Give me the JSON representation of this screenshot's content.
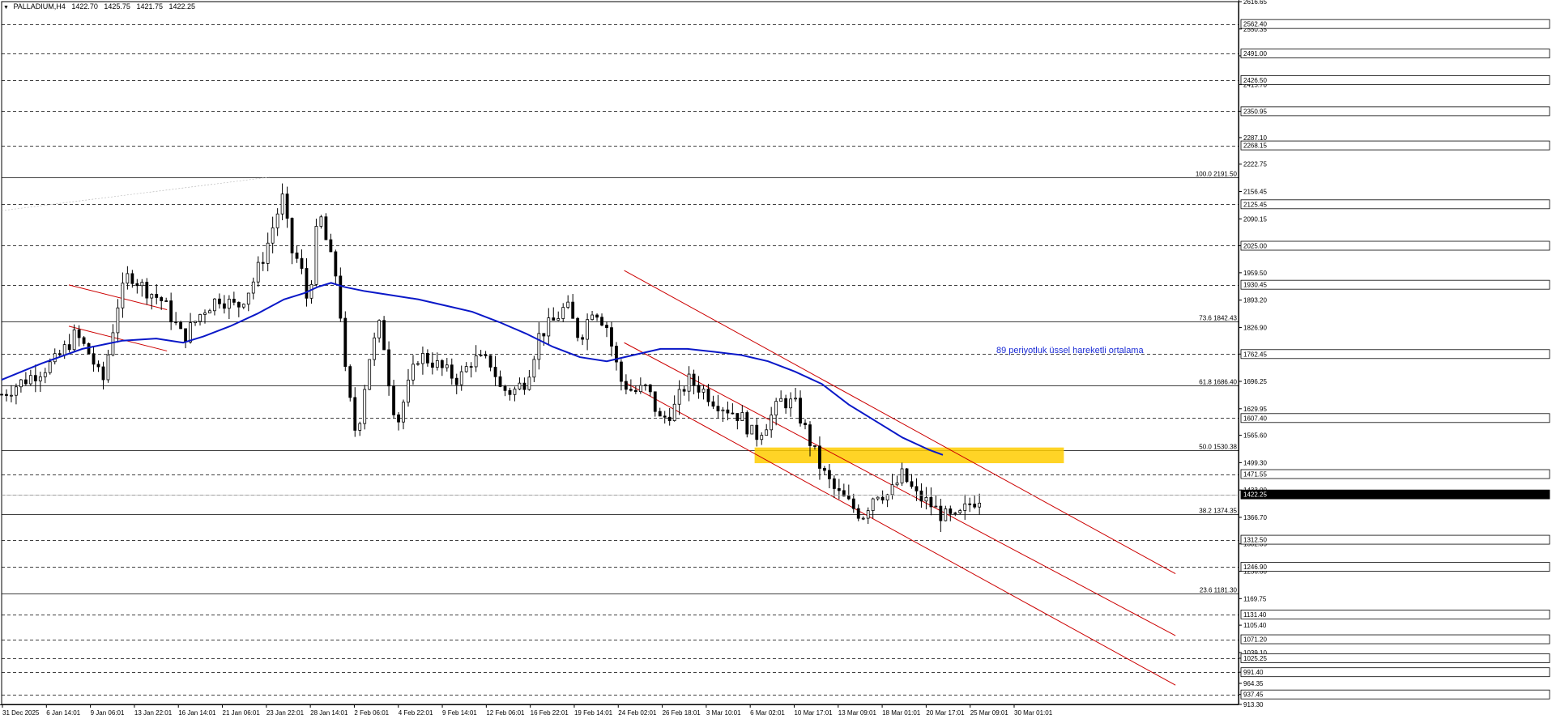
{
  "header": {
    "symbol": "PALLADIUM,H4",
    "open": "1422.70",
    "high": "1425.75",
    "low": "1421.75",
    "close": "1422.25"
  },
  "colors": {
    "background": "#ffffff",
    "candle": "#000000",
    "ema": "#0a18c8",
    "channel": "#cc0000",
    "zone": "#ffcc00",
    "annotation": "#1a2bd6",
    "grid": "#000000"
  },
  "annotation": "89 periyotluk üssel hareketli ortalama",
  "chart_data": {
    "type": "candlestick",
    "timeframe": "H4",
    "ylim": [
      913.3,
      2616.65
    ],
    "y_ticks": [
      "2616.65",
      "2550.35",
      "2485.30",
      "2415.70",
      "2350.95",
      "2287.10",
      "2222.75",
      "2156.45",
      "2090.15",
      "2025.00",
      "1959.50",
      "1893.20",
      "1826.90",
      "1762.45",
      "1696.25",
      "1629.95",
      "1565.60",
      "1499.30",
      "1433.00",
      "1366.70",
      "1302.35",
      "1236.00",
      "1169.75",
      "1105.40",
      "1039.10",
      "1025.25",
      "991.40",
      "964.35",
      "937.45",
      "913.30"
    ],
    "x_labels": [
      "31 Dec 2025",
      "6 Jan 14:01",
      "9 Jan 06:01",
      "13 Jan 22:01",
      "16 Jan 14:01",
      "21 Jan 06:01",
      "23 Jan 22:01",
      "28 Jan 14:01",
      "2 Feb 06:01",
      "4 Feb 22:01",
      "9 Feb 14:01",
      "12 Feb 06:01",
      "16 Feb 22:01",
      "19 Feb 14:01",
      "24 Feb 02:01",
      "26 Feb 18:01",
      "3 Mar 10:01",
      "6 Mar 02:01",
      "10 Mar 17:01",
      "13 Mar 09:01",
      "18 Mar 01:01",
      "20 Mar 17:01",
      "25 Mar 09:01",
      "30 Mar 01:01"
    ],
    "price_levels": [
      {
        "label": "2562.40",
        "value": 2562.4
      },
      {
        "label": "2491.00",
        "value": 2491.0
      },
      {
        "label": "2426.50",
        "value": 2426.5
      },
      {
        "label": "2350.95",
        "value": 2350.95
      },
      {
        "label": "2268.15",
        "value": 2268.15
      },
      {
        "label": "2125.45",
        "value": 2125.45
      },
      {
        "label": "2025.00",
        "value": 2025.0
      },
      {
        "label": "1930.45",
        "value": 1930.45
      },
      {
        "label": "1762.45",
        "value": 1762.45
      },
      {
        "label": "1607.40",
        "value": 1607.4
      },
      {
        "label": "1471.55",
        "value": 1471.55
      },
      {
        "label": "1422.25",
        "value": 1422.25
      },
      {
        "label": "1312.50",
        "value": 1312.5
      },
      {
        "label": "1246.90",
        "value": 1246.9
      },
      {
        "label": "1131.40",
        "value": 1131.4
      },
      {
        "label": "1071.20",
        "value": 1071.2
      },
      {
        "label": "1025.25",
        "value": 1025.25
      },
      {
        "label": "991.40",
        "value": 991.4
      },
      {
        "label": "937.45",
        "value": 937.45
      }
    ],
    "fibonacci": [
      {
        "label": "100.0 2191.50",
        "value": 2191.5
      },
      {
        "label": "73.6 1842.43",
        "value": 1842.43
      },
      {
        "label": "61.8 1686.40",
        "value": 1686.4
      },
      {
        "label": "50.0 1530.38",
        "value": 1530.38
      },
      {
        "label": "38.2 1374.35",
        "value": 1374.35
      },
      {
        "label": "23.6 1181.30",
        "value": 1181.3
      }
    ],
    "close_path": [
      [
        0,
        1665
      ],
      [
        2,
        1705
      ],
      [
        4,
        1745
      ],
      [
        5.5,
        1810
      ],
      [
        6.6,
        1760
      ],
      [
        7.5,
        1690
      ],
      [
        8.6,
        1880
      ],
      [
        9.5,
        1960
      ],
      [
        10.5,
        1925
      ],
      [
        12,
        1890
      ],
      [
        13.5,
        1800
      ],
      [
        15,
        1870
      ],
      [
        16.2,
        1900
      ],
      [
        17.5,
        1875
      ],
      [
        18.6,
        1930
      ],
      [
        19.6,
        2010
      ],
      [
        20.3,
        2085
      ],
      [
        21,
        2150
      ],
      [
        21.4,
        2020
      ],
      [
        22.2,
        1980
      ],
      [
        22.8,
        1880
      ],
      [
        23.6,
        2110
      ],
      [
        24.4,
        2000
      ],
      [
        25,
        1940
      ],
      [
        25.6,
        1700
      ],
      [
        26.4,
        1560
      ],
      [
        27.3,
        1750
      ],
      [
        28.2,
        1840
      ],
      [
        28.8,
        1700
      ],
      [
        29.4,
        1590
      ],
      [
        30,
        1660
      ],
      [
        31,
        1760
      ],
      [
        32,
        1745
      ],
      [
        33,
        1720
      ],
      [
        34,
        1700
      ],
      [
        35,
        1750
      ],
      [
        36.5,
        1740
      ],
      [
        37,
        1680
      ],
      [
        38,
        1670
      ],
      [
        39,
        1700
      ],
      [
        40,
        1810
      ],
      [
        41,
        1840
      ],
      [
        42,
        1880
      ],
      [
        43,
        1800
      ],
      [
        44,
        1880
      ],
      [
        45,
        1830
      ],
      [
        46,
        1700
      ],
      [
        47,
        1670
      ],
      [
        48,
        1680
      ],
      [
        49,
        1600
      ],
      [
        50,
        1630
      ],
      [
        51,
        1700
      ],
      [
        52,
        1680
      ],
      [
        53,
        1650
      ],
      [
        54,
        1630
      ],
      [
        55,
        1610
      ],
      [
        56,
        1560
      ],
      [
        57,
        1600
      ],
      [
        58,
        1650
      ],
      [
        59,
        1640
      ],
      [
        60,
        1560
      ],
      [
        61,
        1480
      ],
      [
        62,
        1430
      ],
      [
        63,
        1400
      ],
      [
        64,
        1370
      ],
      [
        65,
        1430
      ],
      [
        66,
        1420
      ],
      [
        67,
        1470
      ],
      [
        68,
        1420
      ],
      [
        69,
        1400
      ],
      [
        70,
        1370
      ],
      [
        71,
        1360
      ],
      [
        72,
        1400
      ],
      [
        73,
        1422
      ]
    ],
    "ema_89": [
      [
        0,
        1700
      ],
      [
        3,
        1740
      ],
      [
        6,
        1775
      ],
      [
        9,
        1795
      ],
      [
        11.5,
        1800
      ],
      [
        13.5,
        1790
      ],
      [
        15,
        1805
      ],
      [
        17,
        1830
      ],
      [
        19,
        1860
      ],
      [
        21,
        1895
      ],
      [
        22.5,
        1910
      ],
      [
        23.5,
        1925
      ],
      [
        24.5,
        1935
      ],
      [
        25.5,
        1925
      ],
      [
        27,
        1915
      ],
      [
        29,
        1905
      ],
      [
        31,
        1895
      ],
      [
        33,
        1880
      ],
      [
        35,
        1865
      ],
      [
        37,
        1840
      ],
      [
        39,
        1812
      ],
      [
        41,
        1780
      ],
      [
        43,
        1755
      ],
      [
        45,
        1745
      ],
      [
        47,
        1760
      ],
      [
        49,
        1775
      ],
      [
        51,
        1775
      ],
      [
        53,
        1768
      ],
      [
        55,
        1760
      ],
      [
        57,
        1745
      ],
      [
        59,
        1720
      ],
      [
        61,
        1690
      ],
      [
        63,
        1640
      ],
      [
        65,
        1600
      ],
      [
        67,
        1560
      ],
      [
        69,
        1530
      ],
      [
        70,
        1518
      ]
    ],
    "channels": [
      {
        "name": "upper",
        "from": [
          46.3,
          1965
        ],
        "to": [
          87.3,
          1230
        ]
      },
      {
        "name": "middle",
        "from": [
          46.3,
          1790
        ],
        "to": [
          87.3,
          1080
        ]
      },
      {
        "name": "lower",
        "from": [
          46.3,
          1695
        ],
        "to": [
          87.3,
          960
        ]
      },
      {
        "name": "small-upper",
        "from": [
          5,
          1930
        ],
        "to": [
          12.3,
          1870
        ]
      },
      {
        "name": "small-lower",
        "from": [
          5,
          1830
        ],
        "to": [
          12.3,
          1770
        ]
      }
    ],
    "zone": {
      "x_from": 56,
      "x_to": 79,
      "y_from": 1498,
      "y_to": 1536
    },
    "current_price": 1422.25
  }
}
